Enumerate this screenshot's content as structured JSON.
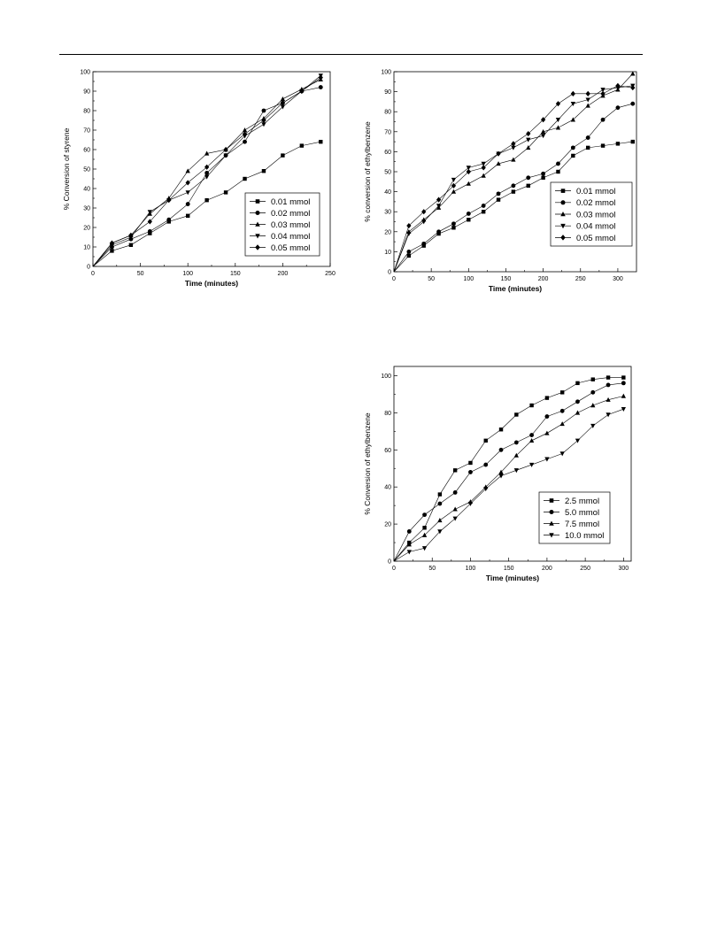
{
  "chart_data": [
    {
      "type": "line",
      "title": "",
      "xlabel": "Time (minutes)",
      "ylabel": "% Conversion of styrene",
      "xlim": [
        0,
        250
      ],
      "ylim": [
        0,
        100
      ],
      "xticks": [
        "0",
        "50",
        "100",
        "150",
        "200",
        "250"
      ],
      "yticks": [
        "0",
        "10",
        "20",
        "30",
        "40",
        "50",
        "60",
        "70",
        "80",
        "90",
        "100"
      ],
      "legend_position": "lower-right",
      "series": [
        {
          "name": "0.01 mmol",
          "marker": "square",
          "x": [
            0,
            20,
            40,
            60,
            80,
            100,
            120,
            140,
            160,
            180,
            200,
            220,
            240
          ],
          "y": [
            0,
            8,
            11,
            17,
            23,
            26,
            34,
            38,
            45,
            49,
            57,
            62,
            64
          ]
        },
        {
          "name": "0.02 mmol",
          "marker": "circle",
          "x": [
            0,
            20,
            40,
            60,
            80,
            100,
            120,
            140,
            160,
            180,
            200,
            220,
            240
          ],
          "y": [
            0,
            10,
            14,
            18,
            24,
            32,
            48,
            57,
            64,
            80,
            84,
            90,
            92
          ]
        },
        {
          "name": "0.03 mmol",
          "marker": "triangle-up",
          "x": [
            0,
            20,
            40,
            60,
            80,
            100,
            120,
            140,
            160,
            180,
            200,
            220,
            240
          ],
          "y": [
            0,
            12,
            16,
            27,
            35,
            49,
            58,
            60,
            70,
            76,
            86,
            91,
            96
          ]
        },
        {
          "name": "0.04 mmol",
          "marker": "triangle-down",
          "x": [
            0,
            20,
            40,
            60,
            80,
            100,
            120,
            140,
            160,
            180,
            200,
            220,
            240
          ],
          "y": [
            0,
            11,
            15,
            28,
            34,
            38,
            46,
            57,
            67,
            73,
            82,
            90,
            98
          ]
        },
        {
          "name": "0.05 mmol",
          "marker": "diamond",
          "x": [
            0,
            20,
            40,
            60,
            80,
            100,
            120,
            140,
            160,
            180,
            200,
            220,
            240
          ],
          "y": [
            0,
            12,
            16,
            23,
            34,
            43,
            51,
            60,
            68,
            75,
            84,
            90,
            97
          ]
        }
      ]
    },
    {
      "type": "line",
      "title": "",
      "xlabel": "Time (minutes)",
      "ylabel": "% conversion of ethylbenzene",
      "xlim": [
        0,
        325
      ],
      "ylim": [
        0,
        100
      ],
      "xticks": [
        "0",
        "50",
        "100",
        "150",
        "200",
        "250",
        "300"
      ],
      "yticks": [
        "0",
        "10",
        "20",
        "30",
        "40",
        "50",
        "60",
        "70",
        "80",
        "90",
        "100"
      ],
      "legend_position": "lower-right",
      "series": [
        {
          "name": "0.01 mmol",
          "marker": "square",
          "x": [
            0,
            20,
            40,
            60,
            80,
            100,
            120,
            140,
            160,
            180,
            200,
            220,
            240,
            260,
            280,
            300,
            320
          ],
          "y": [
            0,
            8,
            13,
            19,
            22,
            26,
            30,
            36,
            40,
            43,
            47,
            50,
            58,
            62,
            63,
            64,
            65
          ]
        },
        {
          "name": "0.02 mmol",
          "marker": "circle",
          "x": [
            0,
            20,
            40,
            60,
            80,
            100,
            120,
            140,
            160,
            180,
            200,
            220,
            240,
            260,
            280,
            300,
            320
          ],
          "y": [
            0,
            10,
            14,
            20,
            24,
            29,
            33,
            39,
            43,
            47,
            49,
            54,
            62,
            67,
            76,
            82,
            84
          ]
        },
        {
          "name": "0.03 mmol",
          "marker": "triangle-up",
          "x": [
            0,
            20,
            40,
            60,
            80,
            100,
            120,
            140,
            160,
            180,
            200,
            220,
            240,
            260,
            280,
            300,
            320
          ],
          "y": [
            0,
            20,
            26,
            32,
            40,
            44,
            48,
            54,
            56,
            62,
            70,
            72,
            76,
            83,
            88,
            91,
            99
          ]
        },
        {
          "name": "0.04 mmol",
          "marker": "triangle-down",
          "x": [
            0,
            20,
            40,
            60,
            80,
            100,
            120,
            140,
            160,
            180,
            200,
            220,
            240,
            260,
            280,
            300,
            320
          ],
          "y": [
            0,
            19,
            25,
            33,
            46,
            52,
            54,
            59,
            62,
            66,
            68,
            76,
            84,
            86,
            91,
            92,
            93
          ]
        },
        {
          "name": "0.05 mmol",
          "marker": "diamond",
          "x": [
            0,
            20,
            40,
            60,
            80,
            100,
            120,
            140,
            160,
            180,
            200,
            220,
            240,
            260,
            280,
            300,
            320
          ],
          "y": [
            0,
            23,
            30,
            36,
            43,
            50,
            52,
            59,
            64,
            69,
            76,
            84,
            89,
            89,
            89,
            93,
            92
          ]
        }
      ]
    },
    {
      "type": "line",
      "title": "",
      "xlabel": "Time (minutes)",
      "ylabel": "% Conversion of ethylbenzene",
      "xlim": [
        0,
        310
      ],
      "ylim": [
        0,
        105
      ],
      "xticks": [
        "0",
        "50",
        "100",
        "150",
        "200",
        "250",
        "300"
      ],
      "yticks": [
        "0",
        "20",
        "40",
        "60",
        "80",
        "100"
      ],
      "legend_position": "lower-right",
      "series": [
        {
          "name": "2.5 mmol",
          "marker": "square",
          "x": [
            0,
            20,
            40,
            60,
            80,
            100,
            120,
            140,
            160,
            180,
            200,
            220,
            240,
            260,
            280,
            300
          ],
          "y": [
            0,
            10,
            18,
            36,
            49,
            53,
            65,
            71,
            79,
            84,
            88,
            91,
            96,
            98,
            99,
            99
          ]
        },
        {
          "name": "5.0 mmol",
          "marker": "circle",
          "x": [
            0,
            20,
            40,
            60,
            80,
            100,
            120,
            140,
            160,
            180,
            200,
            220,
            240,
            260,
            280,
            300
          ],
          "y": [
            0,
            16,
            25,
            31,
            37,
            48,
            52,
            60,
            64,
            68,
            78,
            81,
            86,
            91,
            95,
            96
          ]
        },
        {
          "name": "7.5 mmol",
          "marker": "triangle-up",
          "x": [
            0,
            20,
            40,
            60,
            80,
            100,
            120,
            140,
            160,
            180,
            200,
            220,
            240,
            260,
            280,
            300
          ],
          "y": [
            0,
            9,
            14,
            22,
            28,
            32,
            40,
            48,
            57,
            65,
            69,
            74,
            80,
            84,
            87,
            89
          ]
        },
        {
          "name": "10.0 mmol",
          "marker": "triangle-down",
          "x": [
            0,
            20,
            40,
            60,
            80,
            100,
            120,
            140,
            160,
            180,
            200,
            220,
            240,
            260,
            280,
            300
          ],
          "y": [
            0,
            5,
            7,
            16,
            23,
            31,
            39,
            46,
            49,
            52,
            55,
            58,
            65,
            73,
            79,
            82
          ]
        }
      ]
    }
  ]
}
